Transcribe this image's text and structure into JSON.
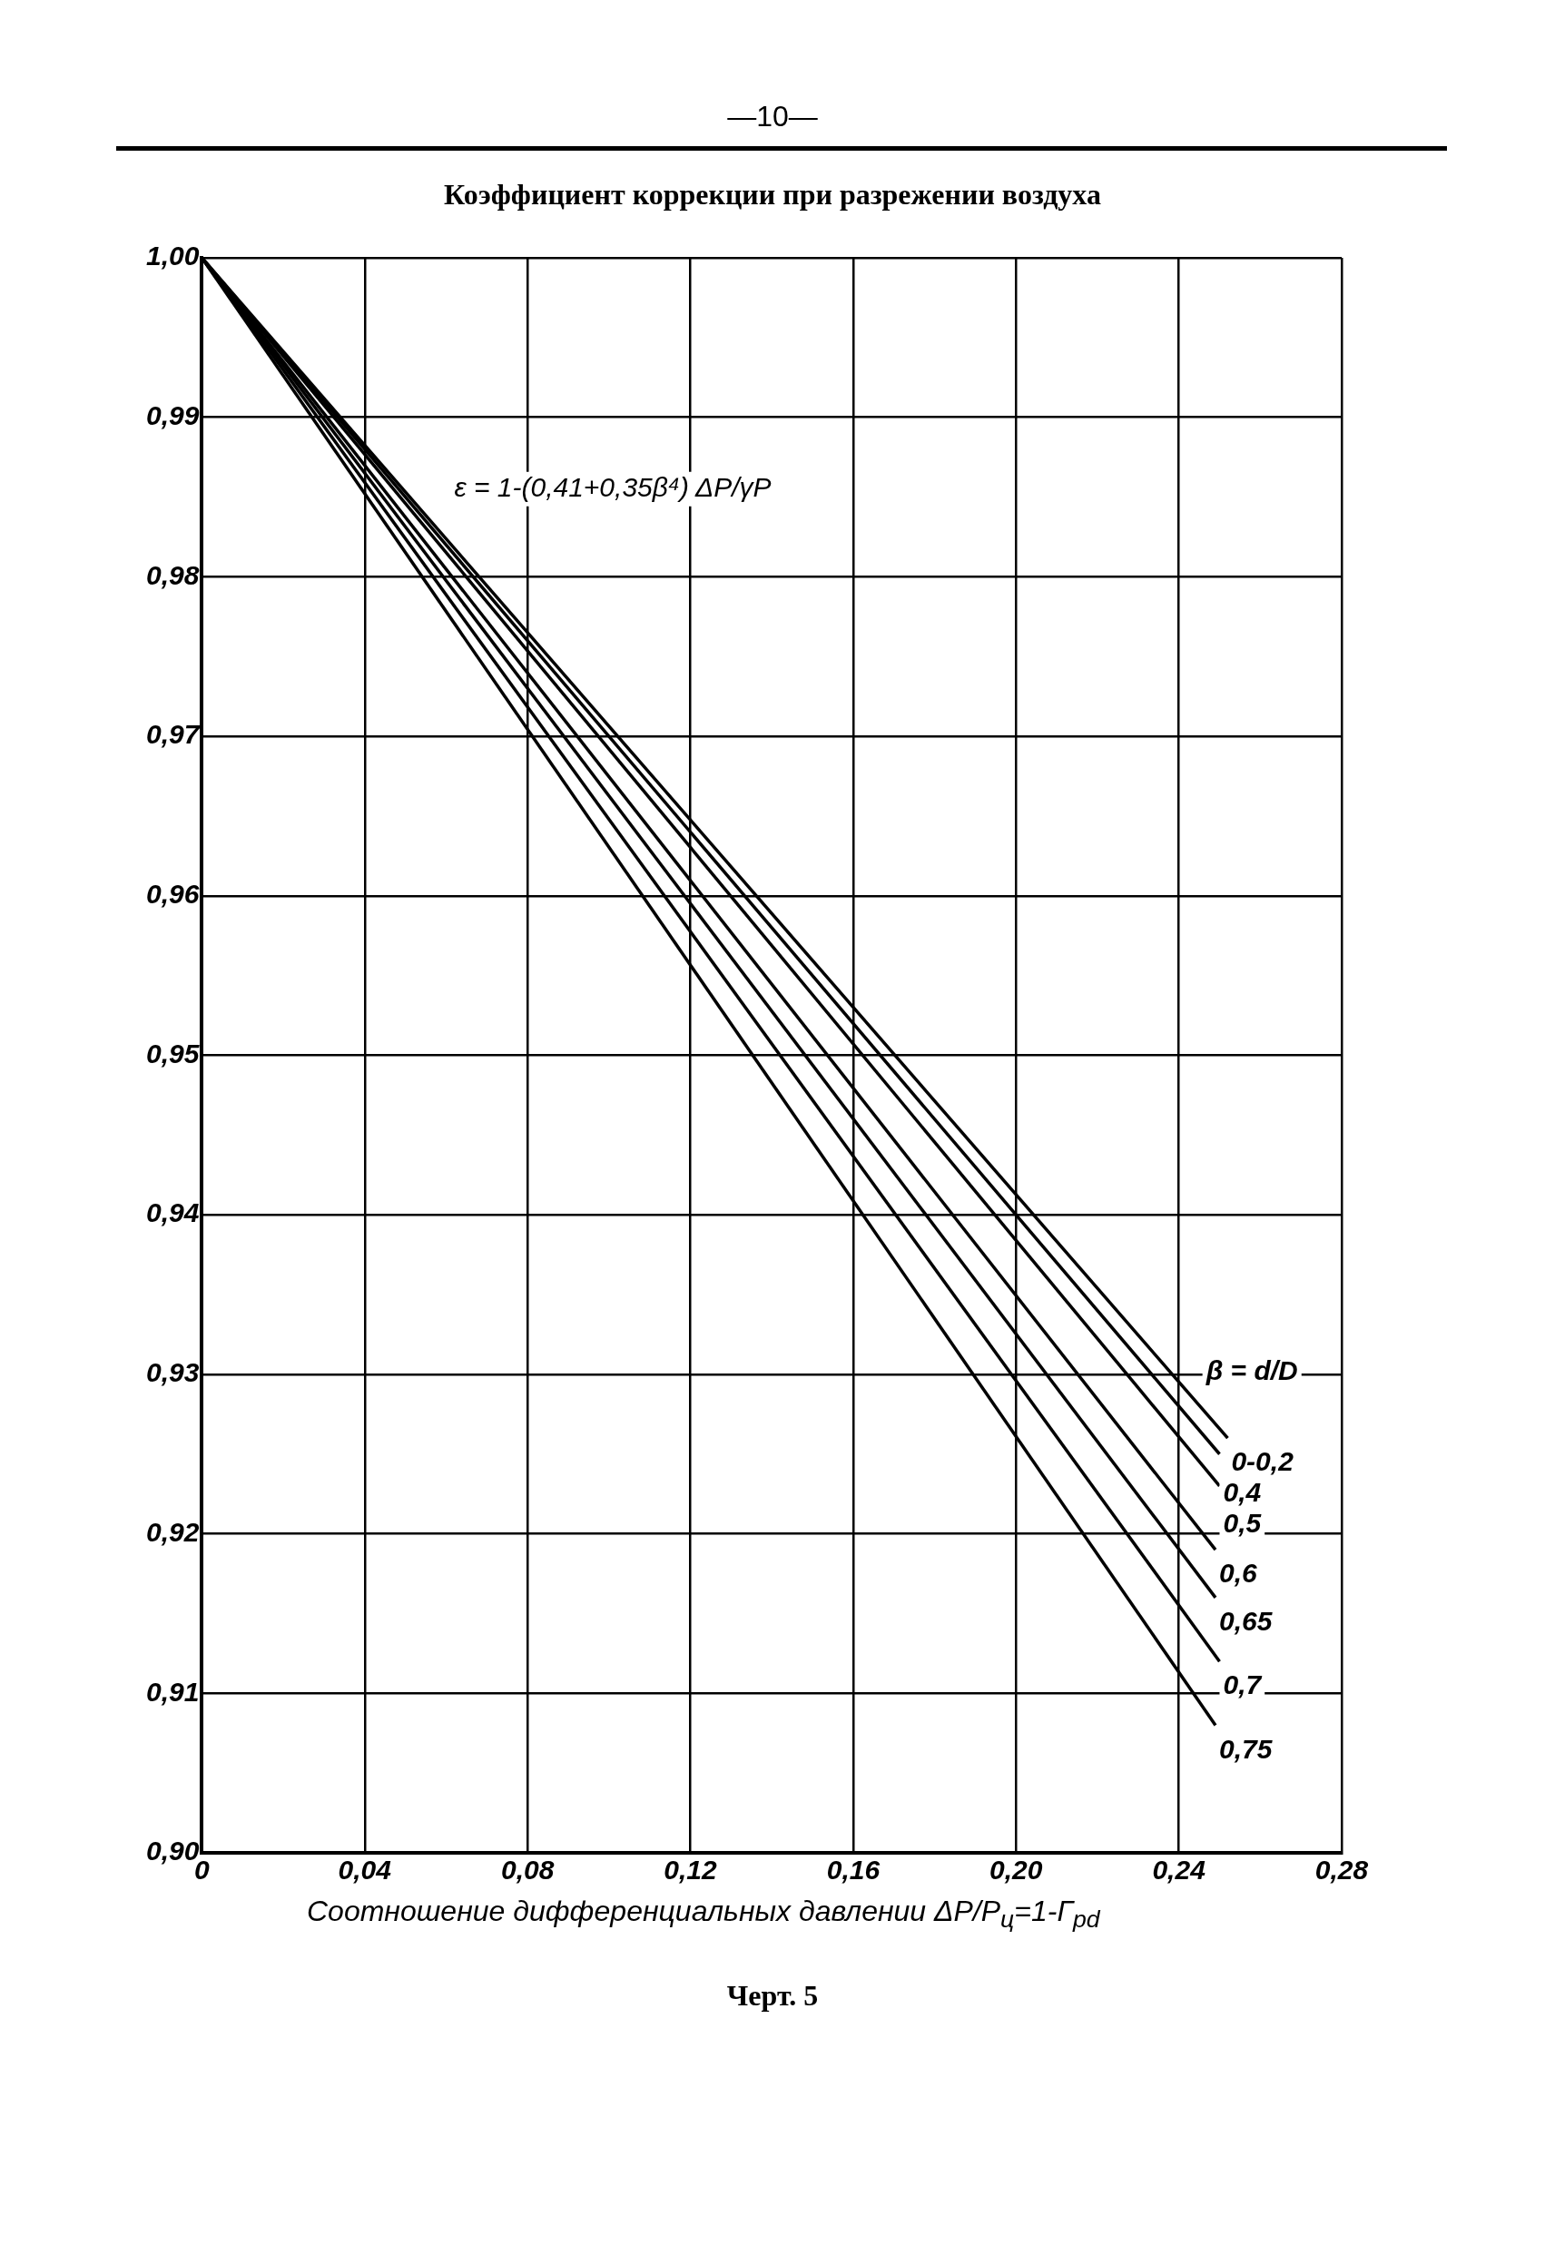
{
  "chart_data": {
    "type": "line",
    "title": "Коэффициент коррекции при разрежении воздуха",
    "xlabel": "Соотношение дифференциальных давлении ΔP/P$_{ц}$=1-Г$_{pd}$",
    "legend_title": "β = d/D",
    "annotations": [
      "—10—",
      "ε = 1-(0,41+0,35β⁴) ΔP/γP",
      "Черт. 5"
    ],
    "xlim": [
      0,
      0.28
    ],
    "xticks": [
      {
        "value": 0,
        "label": "0"
      },
      {
        "value": 0.04,
        "label": "0,04"
      },
      {
        "value": 0.08,
        "label": "0,08"
      },
      {
        "value": 0.12,
        "label": "0,12"
      },
      {
        "value": 0.16,
        "label": "0,16"
      },
      {
        "value": 0.2,
        "label": "0,20"
      },
      {
        "value": 0.24,
        "label": "0,24"
      },
      {
        "value": 0.28,
        "label": "0,28"
      }
    ],
    "ylim": [
      0.9,
      1.0
    ],
    "yticks": [
      {
        "value": 0.9,
        "label": "0,90"
      },
      {
        "value": 0.91,
        "label": "0,91"
      },
      {
        "value": 0.92,
        "label": "0,92"
      },
      {
        "value": 0.93,
        "label": "0,93"
      },
      {
        "value": 0.94,
        "label": "0,94"
      },
      {
        "value": 0.95,
        "label": "0,95"
      },
      {
        "value": 0.96,
        "label": "0,96"
      },
      {
        "value": 0.97,
        "label": "0,97"
      },
      {
        "value": 0.98,
        "label": "0,98"
      },
      {
        "value": 0.99,
        "label": "0,99"
      },
      {
        "value": 1.0,
        "label": "1,00"
      }
    ],
    "grid": true,
    "legend": false,
    "marker": "none",
    "line_style": "solid",
    "series": [
      {
        "name": "0-0,2",
        "color": "#000000",
        "x": [
          0,
          0.252
        ],
        "values": [
          1,
          0.926
        ]
      },
      {
        "name": "0,4",
        "color": "#000000",
        "x": [
          0,
          0.25
        ],
        "values": [
          1,
          0.925
        ]
      },
      {
        "name": "0,5",
        "color": "#000000",
        "x": [
          0,
          0.25
        ],
        "values": [
          1,
          0.923
        ]
      },
      {
        "name": "0,6",
        "color": "#000000",
        "x": [
          0,
          0.249
        ],
        "values": [
          1,
          0.919
        ]
      },
      {
        "name": "0,65",
        "color": "#000000",
        "x": [
          0,
          0.249
        ],
        "values": [
          1,
          0.916
        ]
      },
      {
        "name": "0,7",
        "color": "#000000",
        "x": [
          0,
          0.25
        ],
        "values": [
          1,
          0.912
        ]
      },
      {
        "name": "0,75",
        "color": "#000000",
        "x": [
          0,
          0.249
        ],
        "values": [
          1,
          0.908
        ]
      }
    ]
  }
}
